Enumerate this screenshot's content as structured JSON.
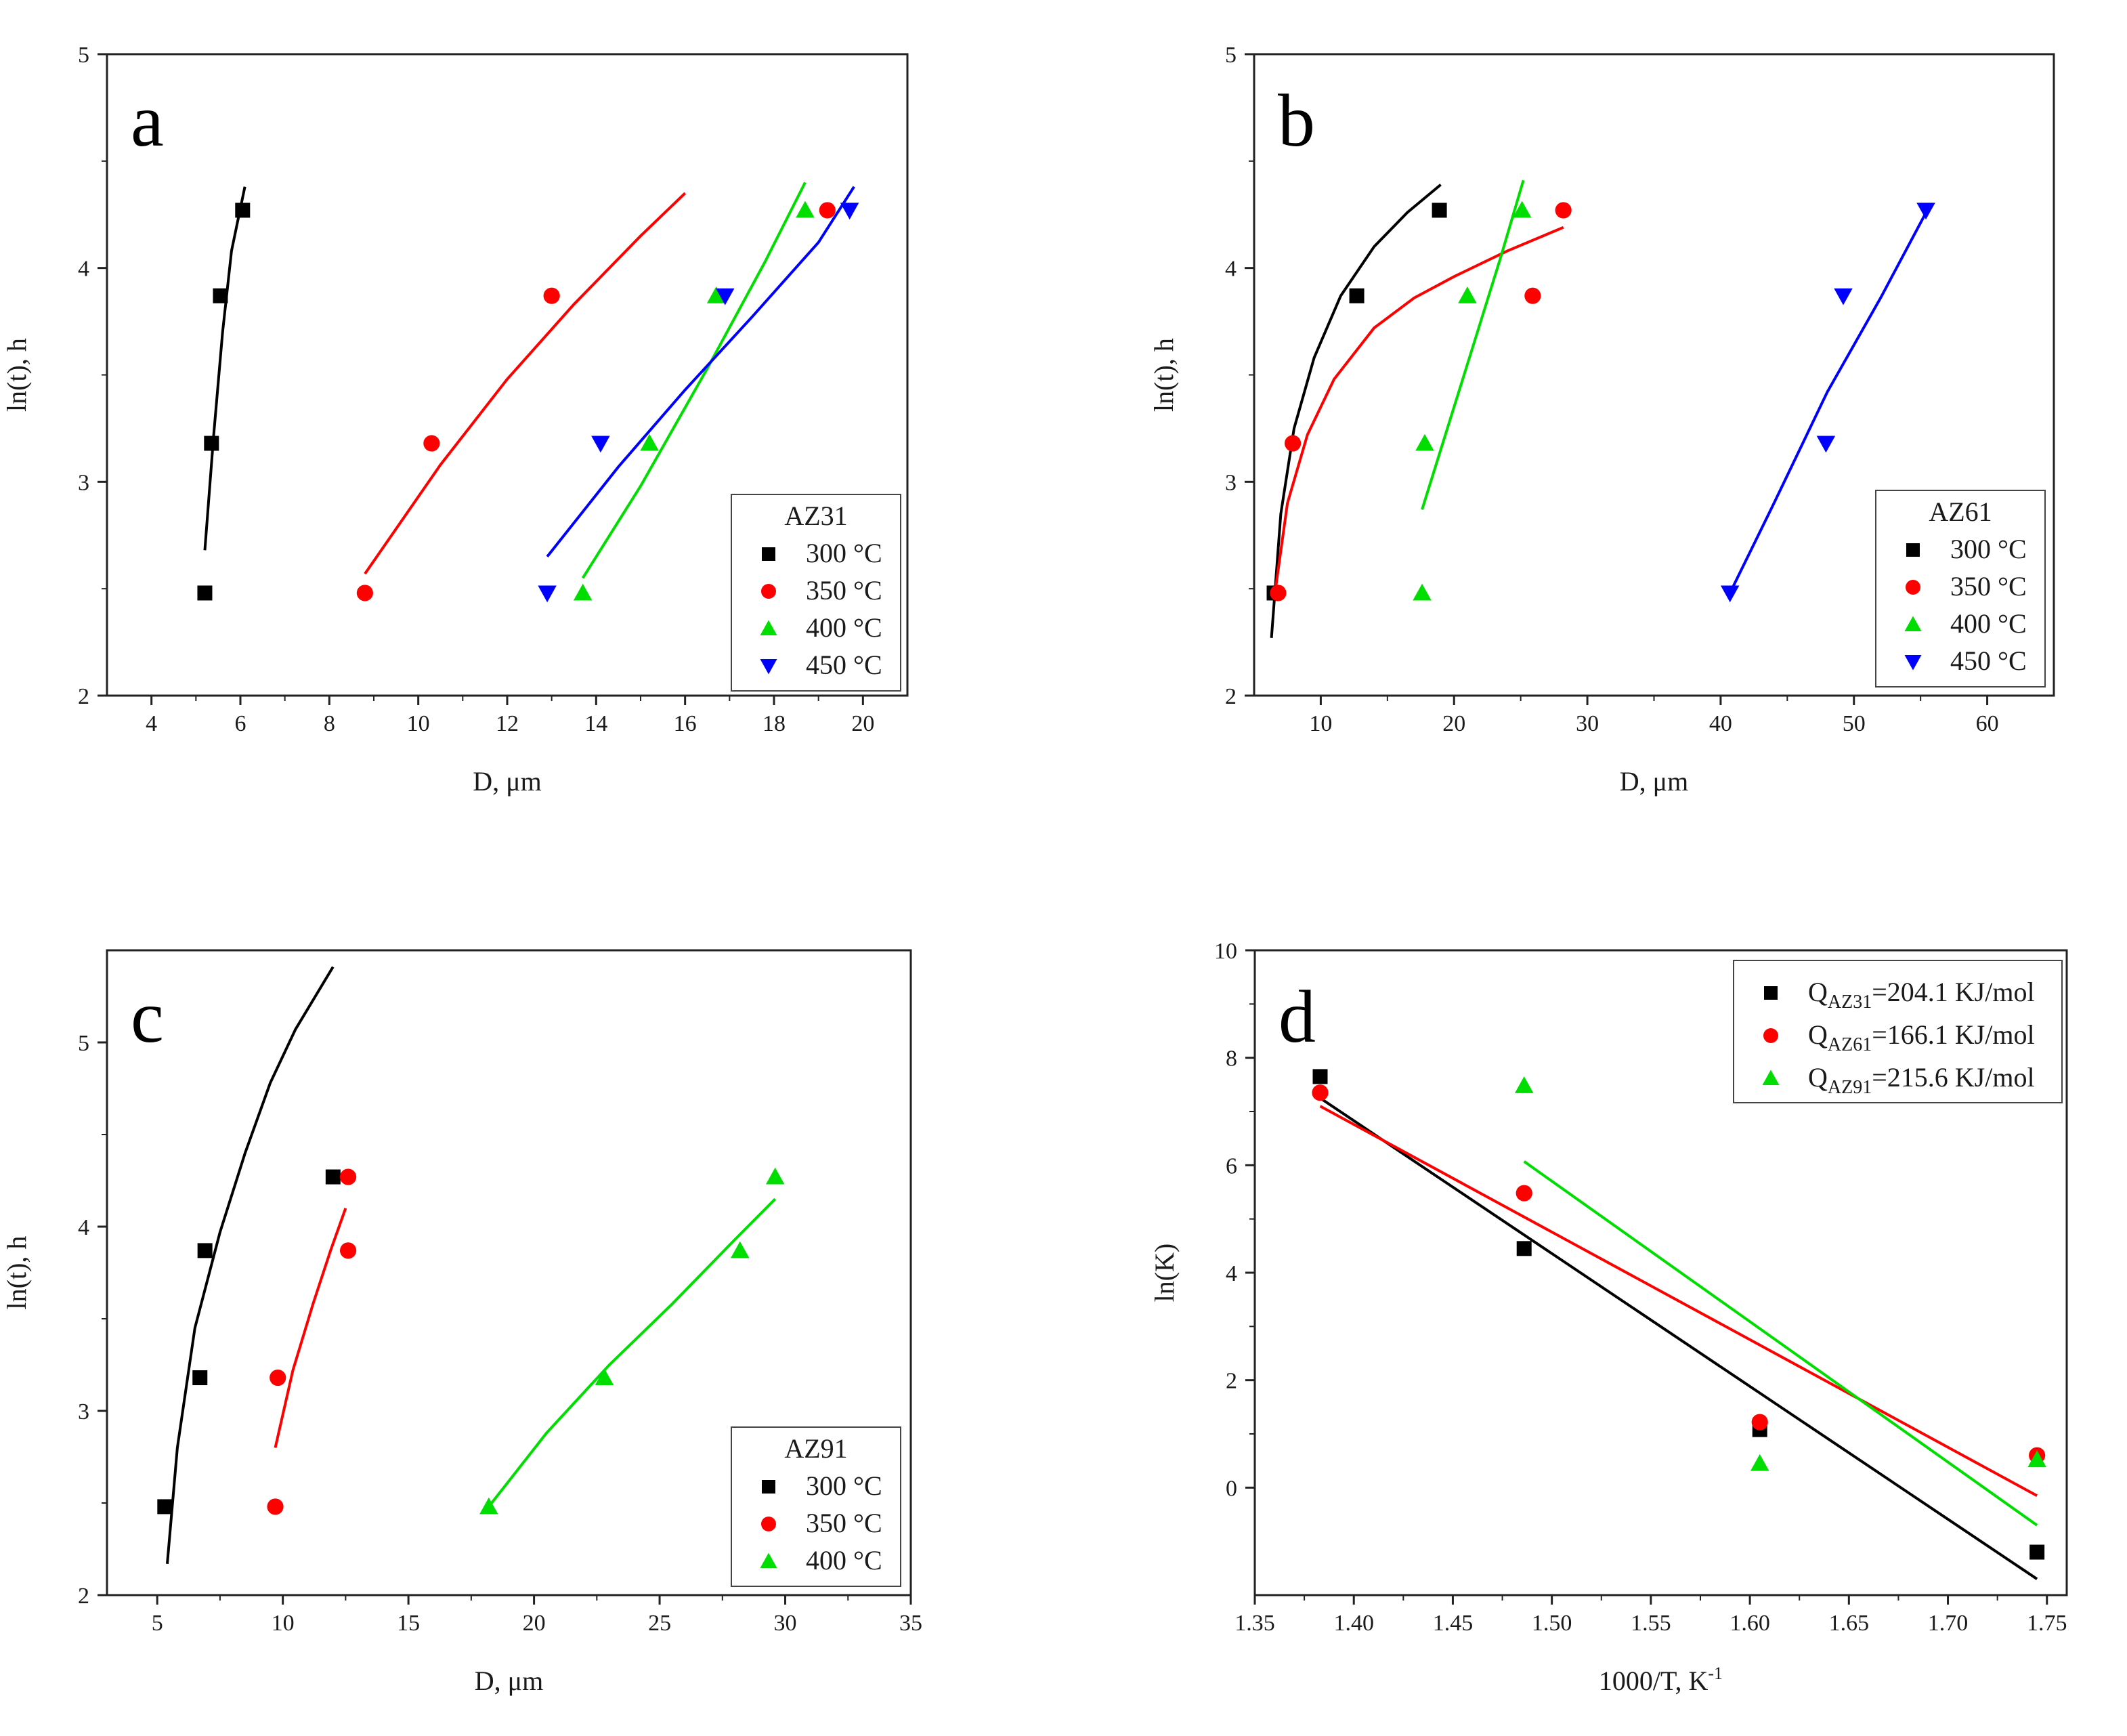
{
  "figure": {
    "panels": [
      {
        "letter": "a"
      },
      {
        "letter": "b"
      },
      {
        "letter": "c"
      },
      {
        "letter": "d"
      }
    ]
  },
  "colors": {
    "300": "#000000",
    "350": "#ff0000",
    "400": "#00dd00",
    "450": "#0000ff"
  },
  "chart_data": [
    {
      "type": "scatter",
      "letter": "a",
      "xlabel": "D, μm",
      "ylabel": "ln(t), h",
      "xlim": [
        3,
        21
      ],
      "ylim": [
        2,
        5
      ],
      "xticks": [
        4,
        6,
        8,
        10,
        12,
        14,
        16,
        18,
        20
      ],
      "yticks": [
        2,
        3,
        4,
        5
      ],
      "legend": {
        "title": "AZ31",
        "position": "bottom-right"
      },
      "series": [
        {
          "name": "300 °C",
          "marker": "square",
          "color": "#000000",
          "x": [
            5.2,
            5.35,
            5.55,
            6.05
          ],
          "y": [
            2.48,
            3.18,
            3.87,
            4.27
          ],
          "fit": {
            "x": [
              5.2,
              5.4,
              5.6,
              5.8,
              6.1
            ],
            "y": [
              2.68,
              3.22,
              3.7,
              4.08,
              4.38
            ]
          }
        },
        {
          "name": "350 °C",
          "marker": "circle",
          "color": "#ff0000",
          "x": [
            8.8,
            10.3,
            13.0,
            19.2
          ],
          "y": [
            2.48,
            3.18,
            3.87,
            4.27
          ],
          "fit": {
            "x": [
              8.8,
              10.5,
              12.0,
              13.5,
              15.0,
              16.0
            ],
            "y": [
              2.57,
              3.08,
              3.48,
              3.83,
              4.15,
              4.35
            ]
          }
        },
        {
          "name": "400 °C",
          "marker": "triangle-up",
          "color": "#00dd00",
          "x": [
            13.7,
            15.2,
            16.7,
            18.7
          ],
          "y": [
            2.48,
            3.18,
            3.87,
            4.27
          ],
          "fit": {
            "x": [
              13.7,
              15.0,
              16.5,
              17.8,
              18.7
            ],
            "y": [
              2.55,
              2.98,
              3.53,
              4.03,
              4.4
            ]
          }
        },
        {
          "name": "450 °C",
          "marker": "triangle-down",
          "color": "#0000ff",
          "x": [
            12.9,
            14.1,
            16.9,
            19.7
          ],
          "y": [
            2.48,
            3.18,
            3.87,
            4.27
          ],
          "fit": {
            "x": [
              12.9,
              14.5,
              16.0,
              17.5,
              19.0,
              19.8
            ],
            "y": [
              2.65,
              3.07,
              3.43,
              3.77,
              4.12,
              4.38
            ]
          }
        }
      ]
    },
    {
      "type": "scatter",
      "letter": "b",
      "xlabel": "D, μm",
      "ylabel": "ln(t), h",
      "xlim": [
        5,
        65
      ],
      "ylim": [
        2,
        5
      ],
      "xticks": [
        10,
        20,
        30,
        40,
        50,
        60
      ],
      "yticks": [
        2,
        3,
        4,
        5
      ],
      "legend": {
        "title": "AZ61",
        "position": "bottom-right"
      },
      "series": [
        {
          "name": "300 °C",
          "marker": "square",
          "color": "#000000",
          "x": [
            6.5,
            12.7,
            18.9
          ],
          "y": [
            2.48,
            3.87,
            4.27
          ],
          "fit": {
            "x": [
              6.3,
              7,
              8,
              9.5,
              11.5,
              14,
              16.5,
              19
            ],
            "y": [
              2.27,
              2.85,
              3.25,
              3.58,
              3.87,
              4.1,
              4.26,
              4.39
            ]
          }
        },
        {
          "name": "350 °C",
          "marker": "circle",
          "color": "#ff0000",
          "x": [
            6.8,
            7.9,
            25.9,
            28.2
          ],
          "y": [
            2.48,
            3.18,
            3.87,
            4.27
          ],
          "fit": {
            "x": [
              6.5,
              7.5,
              9,
              11,
              14,
              17,
              20,
              24,
              28.2
            ],
            "y": [
              2.45,
              2.9,
              3.22,
              3.48,
              3.72,
              3.86,
              3.96,
              4.08,
              4.19
            ]
          }
        },
        {
          "name": "400 °C",
          "marker": "triangle-up",
          "color": "#00dd00",
          "x": [
            17.6,
            17.8,
            21.0,
            25.1
          ],
          "y": [
            2.48,
            3.18,
            3.87,
            4.27
          ],
          "fit": {
            "x": [
              17.6,
              19.5,
              21.5,
              23.5,
              25.2
            ],
            "y": [
              2.87,
              3.25,
              3.65,
              4.05,
              4.41
            ]
          }
        },
        {
          "name": "450 °C",
          "marker": "triangle-down",
          "color": "#0000ff",
          "x": [
            40.7,
            47.9,
            49.2,
            55.4
          ],
          "y": [
            2.48,
            3.18,
            3.87,
            4.27
          ],
          "fit": {
            "x": [
              40.7,
              44,
              48,
              52,
              55.5
            ],
            "y": [
              2.48,
              2.9,
              3.42,
              3.86,
              4.27
            ]
          }
        }
      ]
    },
    {
      "type": "scatter",
      "letter": "c",
      "xlabel": "D, μm",
      "ylabel": "ln(t), h",
      "xlim": [
        3,
        35
      ],
      "ylim": [
        2,
        5.5
      ],
      "xticks": [
        5,
        10,
        15,
        20,
        25,
        30,
        35
      ],
      "yticks": [
        2,
        3,
        4,
        5
      ],
      "legend": {
        "title": "AZ91",
        "position": "bottom-right"
      },
      "series": [
        {
          "name": "300 °C",
          "marker": "square",
          "color": "#000000",
          "x": [
            5.3,
            6.7,
            6.9,
            12.0
          ],
          "y": [
            2.48,
            3.18,
            3.87,
            4.27
          ],
          "fit": {
            "x": [
              5.4,
              5.8,
              6.5,
              7.5,
              8.5,
              9.5,
              10.5,
              12.0
            ],
            "y": [
              2.17,
              2.8,
              3.45,
              3.97,
              4.4,
              4.78,
              5.07,
              5.41
            ]
          }
        },
        {
          "name": "350 °C",
          "marker": "circle",
          "color": "#ff0000",
          "x": [
            9.7,
            9.8,
            12.6,
            12.6
          ],
          "y": [
            2.48,
            3.18,
            3.87,
            4.27
          ],
          "fit": {
            "x": [
              9.7,
              10.4,
              11.2,
              11.9,
              12.5
            ],
            "y": [
              2.8,
              3.22,
              3.58,
              3.87,
              4.1
            ]
          }
        },
        {
          "name": "400 °C",
          "marker": "triangle-up",
          "color": "#00dd00",
          "x": [
            18.2,
            22.8,
            28.2,
            29.6
          ],
          "y": [
            2.48,
            3.18,
            3.87,
            4.27
          ],
          "fit": {
            "x": [
              18.2,
              20.5,
              23.0,
              25.5,
              28.0,
              29.6
            ],
            "y": [
              2.48,
              2.88,
              3.25,
              3.58,
              3.93,
              4.15
            ]
          }
        }
      ]
    },
    {
      "type": "scatter",
      "letter": "d",
      "xlabel": "1000/T, K",
      "xlabel_sup": "-1",
      "ylabel": "ln(K)",
      "xlim": [
        1.35,
        1.76
      ],
      "ylim": [
        -2,
        10
      ],
      "xticks": [
        1.35,
        1.4,
        1.45,
        1.5,
        1.55,
        1.6,
        1.65,
        1.7,
        1.75
      ],
      "xtick_labels": [
        "1.35",
        "1.40",
        "1.45",
        "1.50",
        "1.55",
        "1.60",
        "1.65",
        "1.70",
        "1.75"
      ],
      "yticks": [
        0,
        2,
        4,
        6,
        8,
        10
      ],
      "legend": {
        "position": "top-right"
      },
      "series": [
        {
          "name_main": "Q",
          "name_sub": "AZ31",
          "name_rest": "=204.1 KJ/mol",
          "marker": "square",
          "color": "#000000",
          "x": [
            1.383,
            1.486,
            1.605,
            1.745
          ],
          "y": [
            7.65,
            4.45,
            1.08,
            -1.2
          ],
          "fit": {
            "x": [
              1.383,
              1.745
            ],
            "y": [
              7.25,
              -1.7
            ]
          }
        },
        {
          "name_main": "Q",
          "name_sub": "AZ61",
          "name_rest": "=166.1 KJ/mol",
          "marker": "circle",
          "color": "#ff0000",
          "x": [
            1.383,
            1.486,
            1.605,
            1.745
          ],
          "y": [
            7.35,
            5.48,
            1.22,
            0.6
          ],
          "fit": {
            "x": [
              1.383,
              1.745
            ],
            "y": [
              7.1,
              -0.15
            ]
          }
        },
        {
          "name_main": "Q",
          "name_sub": "AZ91",
          "name_rest": "=215.6 KJ/mol",
          "marker": "triangle-up",
          "color": "#00dd00",
          "x": [
            1.486,
            1.605,
            1.745
          ],
          "y": [
            7.48,
            0.45,
            0.52
          ],
          "fit": {
            "x": [
              1.486,
              1.745
            ],
            "y": [
              6.07,
              -0.7
            ]
          }
        }
      ]
    }
  ]
}
